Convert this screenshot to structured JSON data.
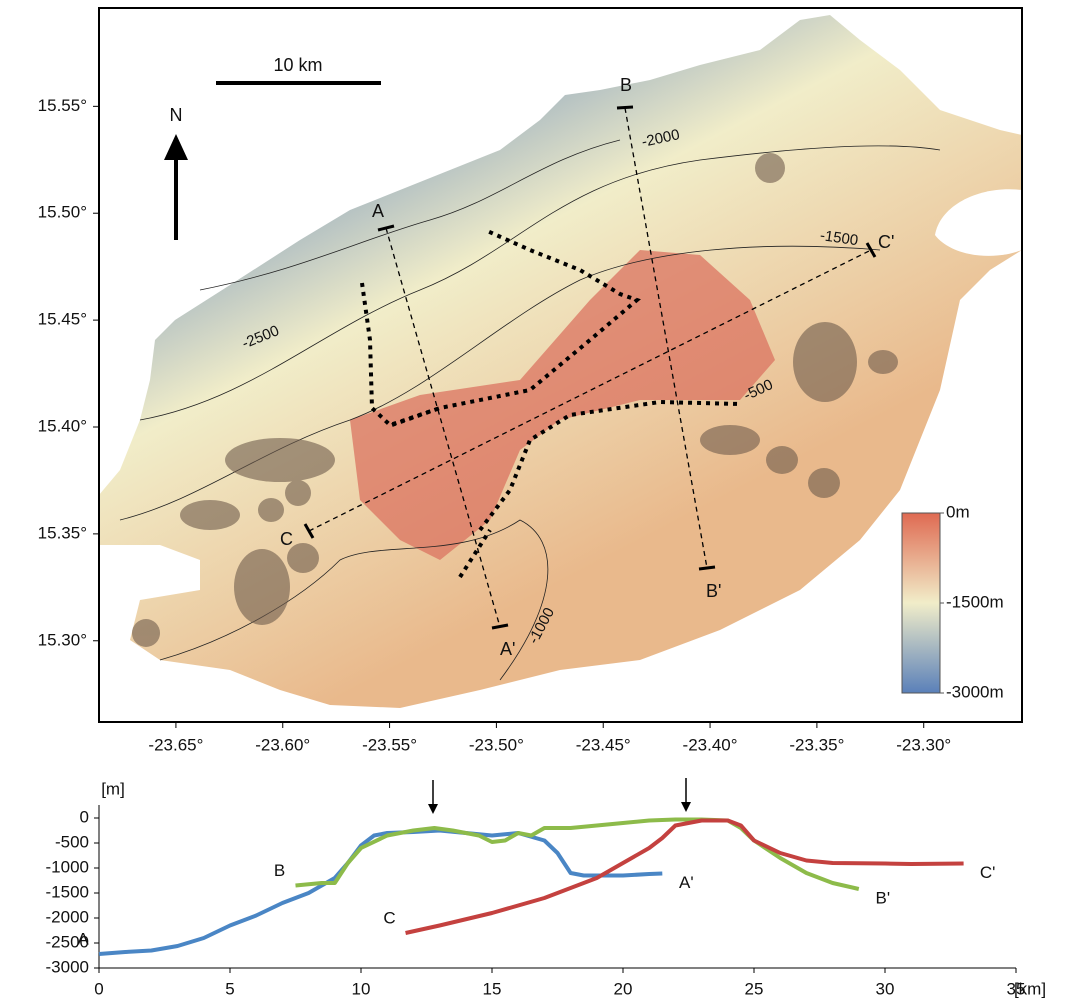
{
  "chart_data": [
    {
      "type": "map",
      "xlim": [
        -23.686,
        -23.254
      ],
      "ylim": [
        15.262,
        15.596
      ],
      "xticks": [
        {
          "value": -23.65,
          "label": "-23.65°"
        },
        {
          "value": -23.6,
          "label": "-23.60°"
        },
        {
          "value": -23.55,
          "label": "-23.55°"
        },
        {
          "value": -23.5,
          "label": "-23.50°"
        },
        {
          "value": -23.45,
          "label": "-23.45°"
        },
        {
          "value": -23.4,
          "label": "-23.40°"
        },
        {
          "value": -23.35,
          "label": "-23.35°"
        },
        {
          "value": -23.3,
          "label": "-23.30°"
        }
      ],
      "yticks": [
        {
          "value": 15.55,
          "label": "15.55°"
        },
        {
          "value": 15.5,
          "label": "15.50°"
        },
        {
          "value": 15.45,
          "label": "15.45°"
        },
        {
          "value": 15.4,
          "label": "15.40°"
        },
        {
          "value": 15.35,
          "label": "15.35°"
        },
        {
          "value": 15.3,
          "label": "15.30°"
        }
      ],
      "scale_bar": "10 km",
      "north": "N",
      "sections": [
        "A",
        "A'",
        "B",
        "B'",
        "C",
        "C'"
      ],
      "contour_labels": [
        "-2000",
        "-1500",
        "-2500",
        "-500",
        "-1000"
      ],
      "colorbar": {
        "lim": [
          -3000,
          0
        ],
        "ticks": [
          {
            "value": 0,
            "label": "0m"
          },
          {
            "value": -1500,
            "label": "-1500m"
          },
          {
            "value": -3000,
            "label": "-3000m"
          }
        ],
        "colors": [
          "#5a80b9",
          "#f1edc9",
          "#df6a52"
        ]
      }
    },
    {
      "type": "line",
      "ylabel": "[m]",
      "xlabel": "[km]",
      "xlim": [
        0,
        35
      ],
      "ylim": [
        -3000,
        0
      ],
      "xticks": [
        0,
        5,
        10,
        15,
        20,
        25,
        30,
        35
      ],
      "yticks": [
        0,
        -500,
        -1000,
        -1500,
        -2000,
        -2500,
        -3000
      ],
      "series": [
        {
          "labels": [
            "A",
            "A'"
          ],
          "color": "#4a86c5",
          "x": [
            0,
            1,
            2,
            3,
            4,
            5,
            6,
            7,
            8,
            9,
            9.5,
            10,
            10.5,
            11,
            12,
            13,
            14,
            15,
            16,
            17,
            17.5,
            18,
            18.5,
            19,
            20,
            21,
            21.5
          ],
          "values": [
            -2720,
            -2680,
            -2650,
            -2560,
            -2400,
            -2150,
            -1950,
            -1700,
            -1500,
            -1200,
            -900,
            -550,
            -350,
            -300,
            -280,
            -250,
            -300,
            -350,
            -300,
            -450,
            -700,
            -1100,
            -1150,
            -1150,
            -1150,
            -1120,
            -1110
          ]
        },
        {
          "labels": [
            "B",
            "B'"
          ],
          "color": "#8dbb4a",
          "x": [
            7.5,
            8.5,
            9,
            9.5,
            10,
            11,
            12,
            12.8,
            13.5,
            14.5,
            15,
            15.5,
            16,
            16.5,
            17,
            18,
            19,
            20,
            21,
            22,
            23,
            24,
            24.5,
            25,
            26,
            27,
            28,
            29
          ],
          "values": [
            -1350,
            -1300,
            -1300,
            -900,
            -600,
            -350,
            -250,
            -200,
            -250,
            -350,
            -480,
            -450,
            -300,
            -350,
            -200,
            -200,
            -150,
            -100,
            -50,
            -30,
            -30,
            -50,
            -200,
            -450,
            -800,
            -1100,
            -1300,
            -1420
          ]
        },
        {
          "labels": [
            "C",
            "C'"
          ],
          "color": "#c4413f",
          "x": [
            11.7,
            13,
            15,
            17,
            19,
            20,
            21,
            21.5,
            22,
            23,
            24,
            24.5,
            25,
            26,
            27,
            28,
            30,
            31,
            33
          ],
          "values": [
            -2300,
            -2150,
            -1900,
            -1600,
            -1200,
            -900,
            -600,
            -400,
            -150,
            -50,
            -50,
            -150,
            -450,
            -700,
            -850,
            -900,
            -910,
            -920,
            -910
          ]
        }
      ]
    }
  ]
}
